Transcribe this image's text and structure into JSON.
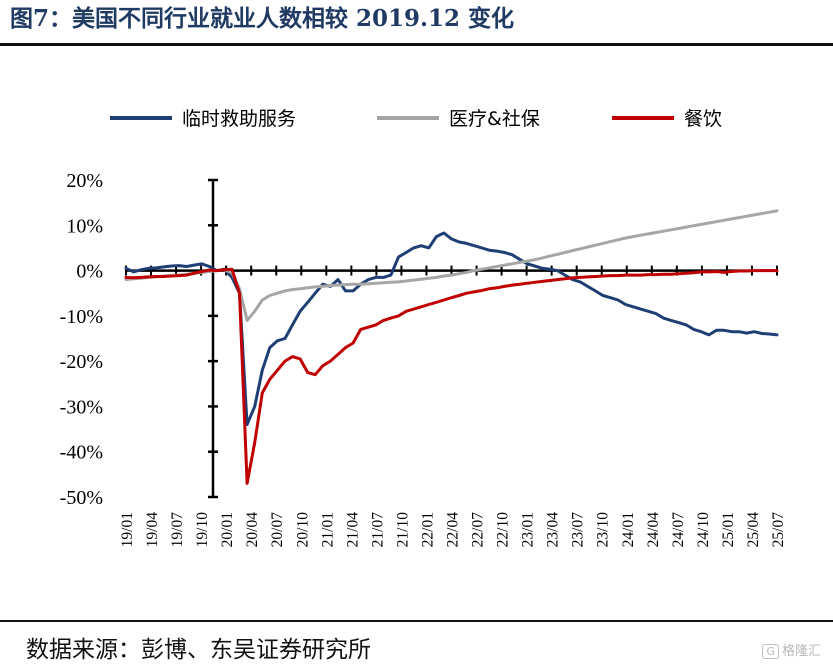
{
  "header": {
    "title": "图7：美国不同行业就业人数相较 2019.12 变化"
  },
  "footer": {
    "source": "数据来源：彭博、东吴证券研究所",
    "watermark": "格隆汇"
  },
  "chart_data": {
    "type": "line",
    "title": "图7：美国不同行业就业人数相较 2019.12 变化",
    "ylabel": "",
    "xlabel": "",
    "ylim": [
      -50,
      20
    ],
    "yticks": [
      20,
      10,
      0,
      -10,
      -20,
      -30,
      -40,
      -50
    ],
    "ytick_labels": [
      "20%",
      "10%",
      "0%",
      "-10%",
      "-20%",
      "-30%",
      "-40%",
      "-50%"
    ],
    "xtick_labels": [
      "19/01",
      "19/04",
      "19/07",
      "19/10",
      "20/01",
      "20/04",
      "20/07",
      "20/10",
      "21/01",
      "21/04",
      "21/07",
      "21/10",
      "22/01",
      "22/04",
      "22/07",
      "22/10",
      "23/01",
      "23/04",
      "23/07",
      "23/10",
      "24/01",
      "24/04",
      "24/07",
      "24/10",
      "25/01",
      "25/04",
      "25/07"
    ],
    "legend_position": "top",
    "grid": false,
    "series": [
      {
        "name": "临时救助服务",
        "color": "#1f3f74",
        "values": [
          0.5,
          -0.3,
          0.2,
          0.5,
          0.6,
          0.8,
          1.0,
          1.1,
          0.9,
          1.2,
          1.5,
          0.9,
          0,
          0.3,
          -1.5,
          -5,
          -34,
          -30,
          -22,
          -17,
          -15.5,
          -15,
          -12,
          -9,
          -7,
          -5,
          -3,
          -3.5,
          -2,
          -4.5,
          -4.5,
          -3,
          -2,
          -1.5,
          -1.5,
          -1,
          3,
          4,
          5,
          5.5,
          5,
          7.5,
          8.3,
          7,
          6.3,
          6,
          5.5,
          5,
          4.5,
          4.3,
          4,
          3.5,
          2.5,
          1.5,
          1,
          0.5,
          0.3,
          0,
          -1,
          -2,
          -2.5,
          -3.5,
          -4.5,
          -5.5,
          -6,
          -6.5,
          -7.5,
          -8,
          -8.5,
          -9,
          -9.5,
          -10.5,
          -11,
          -11.5,
          -12,
          -13,
          -13.5,
          -14.2,
          -13.2,
          -13.2,
          -13.5,
          -13.5,
          -13.8,
          -13.5,
          -13.9,
          -14,
          -14.2
        ]
      },
      {
        "name": "医疗&社保",
        "color": "#a6a6a6",
        "values": [
          -2.0,
          -1.8,
          -1.7,
          -1.5,
          -1.4,
          -1.2,
          -1.1,
          -1.0,
          -0.8,
          -0.6,
          -0.4,
          -0.2,
          0,
          0.2,
          -0.5,
          -4,
          -11,
          -9,
          -6.5,
          -5.5,
          -5,
          -4.5,
          -4.2,
          -4,
          -3.8,
          -3.6,
          -3.5,
          -3.3,
          -3.2,
          -3.1,
          -3,
          -3,
          -2.9,
          -2.8,
          -2.7,
          -2.6,
          -2.5,
          -2.3,
          -2.1,
          -1.9,
          -1.7,
          -1.5,
          -1.2,
          -1,
          -0.7,
          -0.4,
          0,
          0.3,
          0.6,
          0.9,
          1.2,
          1.5,
          1.8,
          2.1,
          2.4,
          2.8,
          3.2,
          3.6,
          4,
          4.4,
          4.8,
          5.2,
          5.6,
          6,
          6.4,
          6.8,
          7.2,
          7.5,
          7.8,
          8.1,
          8.4,
          8.7,
          9,
          9.3,
          9.6,
          9.9,
          10.2,
          10.5,
          10.8,
          11.1,
          11.4,
          11.7,
          12,
          12.3,
          12.6,
          12.9,
          13.2
        ]
      },
      {
        "name": "餐饮",
        "color": "#c00000",
        "values": [
          -1.5,
          -1.6,
          -1.5,
          -1.4,
          -1.3,
          -1.3,
          -1.2,
          -1.1,
          -1.0,
          -0.6,
          -0.2,
          0.1,
          0,
          0.2,
          0.3,
          -5,
          -47,
          -38,
          -27,
          -24,
          -22,
          -20,
          -19,
          -19.5,
          -22.5,
          -23,
          -21,
          -20,
          -18.5,
          -17,
          -16,
          -13,
          -12.5,
          -12,
          -11,
          -10.5,
          -10,
          -9,
          -8.5,
          -8,
          -7.5,
          -7,
          -6.5,
          -6,
          -5.5,
          -5,
          -4.7,
          -4.4,
          -4,
          -3.8,
          -3.5,
          -3.2,
          -3,
          -2.8,
          -2.6,
          -2.4,
          -2.2,
          -2,
          -1.8,
          -1.6,
          -1.5,
          -1.4,
          -1.3,
          -1.2,
          -1.1,
          -1.1,
          -1,
          -1,
          -1,
          -0.9,
          -0.9,
          -0.8,
          -0.8,
          -0.7,
          -0.6,
          -0.5,
          -0.3,
          -0.3,
          -0.2,
          -0.4,
          -0.2,
          -0.1,
          -0.1,
          0,
          0,
          0,
          0
        ]
      }
    ]
  }
}
